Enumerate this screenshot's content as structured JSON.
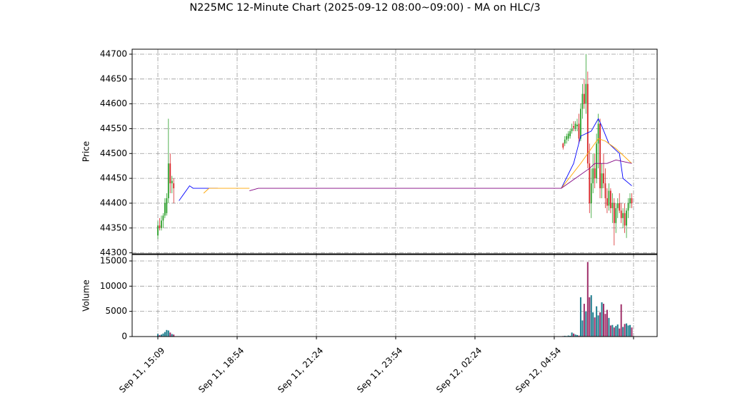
{
  "chart_data": [
    {
      "type": "candlestick",
      "title": "N225MC 12-Minute Chart (2025-09-12 08:00~09:00) - MA on HLC/3",
      "ylabel": "Price",
      "x": [
        0,
        1,
        2,
        3,
        4,
        5,
        6,
        7,
        8,
        9,
        230,
        231,
        232,
        233,
        234,
        235,
        236,
        237,
        238,
        239,
        240,
        241,
        242,
        243,
        244,
        245,
        246,
        247,
        248,
        249,
        250,
        251,
        252,
        253,
        254,
        255,
        256,
        257,
        258,
        259,
        260,
        261,
        262,
        263,
        264,
        265,
        266,
        267,
        268,
        269
      ],
      "open": [
        44335,
        44355,
        44350,
        44365,
        44375,
        44380,
        44410,
        44480,
        44440,
        44440,
        44520,
        44520,
        44528,
        44530,
        44535,
        44545,
        44555,
        44550,
        44555,
        44560,
        44530,
        44590,
        44620,
        44600,
        44640,
        44480,
        44400,
        44440,
        44470,
        44450,
        44520,
        44560,
        44430,
        44460,
        44440,
        44410,
        44395,
        44425,
        44390,
        44400,
        44360,
        44390,
        44400,
        44385,
        44370,
        44380,
        44355,
        44385,
        44400,
        44410
      ],
      "high": [
        44365,
        44370,
        44375,
        44380,
        44410,
        44420,
        44570,
        44500,
        44455,
        44450,
        44522,
        44535,
        44540,
        44545,
        44550,
        44560,
        44565,
        44565,
        44570,
        44580,
        44600,
        44640,
        44650,
        44700,
        44665,
        44520,
        44470,
        44500,
        44500,
        44540,
        44580,
        44570,
        44480,
        44500,
        44470,
        44430,
        44440,
        44430,
        44420,
        44410,
        44400,
        44410,
        44420,
        44400,
        44390,
        44400,
        44390,
        44410,
        44420,
        44420
      ],
      "low": [
        44328,
        44345,
        44345,
        44350,
        44370,
        44375,
        44400,
        44420,
        44420,
        44400,
        44508,
        44515,
        44520,
        44525,
        44530,
        44540,
        44545,
        44545,
        44545,
        44520,
        44525,
        44570,
        44590,
        44580,
        44470,
        44380,
        44370,
        44420,
        44430,
        44440,
        44470,
        44410,
        44410,
        44430,
        44390,
        44380,
        44385,
        44380,
        44360,
        44315,
        44340,
        44370,
        44380,
        44360,
        44350,
        44340,
        44330,
        44370,
        44390,
        44390
      ],
      "close": [
        44355,
        44350,
        44365,
        44375,
        44400,
        44410,
        44480,
        44440,
        44445,
        44430,
        44512,
        44528,
        44535,
        44540,
        44545,
        44550,
        44552,
        44560,
        44558,
        44530,
        44590,
        44620,
        44600,
        44640,
        44480,
        44400,
        44440,
        44470,
        44450,
        44520,
        44560,
        44430,
        44460,
        44440,
        44410,
        44395,
        44425,
        44390,
        44400,
        44360,
        44390,
        44400,
        44385,
        44370,
        44380,
        44355,
        44385,
        44400,
        44410,
        44400
      ],
      "up_color": "#2ca02c",
      "down_color": "#d62728",
      "lines": [
        {
          "color": "#0000ff",
          "x": [
            12,
            18,
            20,
            34,
            35,
            229,
            236,
            240,
            246,
            250,
            252,
            256,
            262,
            264,
            269
          ],
          "values": [
            44405,
            44435,
            44430,
            44430,
            null,
            44430,
            44480,
            44535,
            44545,
            44570,
            44555,
            44520,
            44500,
            44450,
            44435
          ]
        },
        {
          "color": "#ffa500",
          "x": [
            26,
            29,
            52,
            53,
            229,
            240,
            250,
            254,
            260,
            266,
            269
          ],
          "values": [
            44420,
            44430,
            44430,
            null,
            44430,
            44480,
            44530,
            44525,
            44510,
            44490,
            44480
          ]
        },
        {
          "color": "#800080",
          "x": [
            52,
            57,
            229,
            245,
            248,
            255,
            260,
            269
          ],
          "values": [
            44425,
            44430,
            44430,
            44470,
            44480,
            44480,
            44487,
            44480
          ]
        }
      ],
      "xlim": [
        -14.6,
        283.4
      ],
      "ylim": [
        44298,
        44710
      ],
      "xticks": [
        0,
        45,
        90,
        135,
        180,
        225,
        270
      ],
      "yticks": [
        44300,
        44350,
        44400,
        44450,
        44500,
        44550,
        44600,
        44650,
        44700
      ],
      "grid": true
    },
    {
      "type": "bar",
      "ylabel": "Volume",
      "x": [
        0,
        1,
        2,
        3,
        4,
        5,
        6,
        7,
        8,
        9,
        230,
        231,
        232,
        233,
        234,
        235,
        236,
        237,
        238,
        239,
        240,
        241,
        242,
        243,
        244,
        245,
        246,
        247,
        248,
        249,
        250,
        251,
        252,
        253,
        254,
        255,
        256,
        257,
        258,
        259,
        260,
        261,
        262,
        263,
        264,
        265,
        266,
        267,
        268,
        269
      ],
      "values": [
        500,
        300,
        400,
        600,
        900,
        1300,
        1200,
        800,
        500,
        400,
        100,
        150,
        100,
        200,
        150,
        800,
        600,
        400,
        300,
        200,
        7800,
        3200,
        6500,
        5000,
        14800,
        7800,
        8200,
        4800,
        3800,
        6000,
        4200,
        4800,
        6800,
        6500,
        4500,
        5300,
        3700,
        2200,
        2300,
        1800,
        2100,
        2400,
        1600,
        6400,
        1900,
        2500,
        2600,
        2200,
        2300,
        1800
      ],
      "up_color": "#1f7f8f",
      "down_color": "#a0306a",
      "xlim": [
        -14.6,
        283.4
      ],
      "ylim": [
        0,
        16270
      ],
      "xticks": [
        {
          "value": 0,
          "label": "Sep 11, 15:09"
        },
        {
          "value": 45,
          "label": "Sep 11, 18:54"
        },
        {
          "value": 90,
          "label": "Sep 11, 21:24"
        },
        {
          "value": 135,
          "label": "Sep 11, 23:54"
        },
        {
          "value": 180,
          "label": "Sep 12, 02:24"
        },
        {
          "value": 225,
          "label": "Sep 12, 04:54"
        },
        {
          "value": 270,
          "label": null
        }
      ],
      "yticks": [
        0,
        5000,
        10000,
        15000
      ],
      "grid": true
    }
  ]
}
